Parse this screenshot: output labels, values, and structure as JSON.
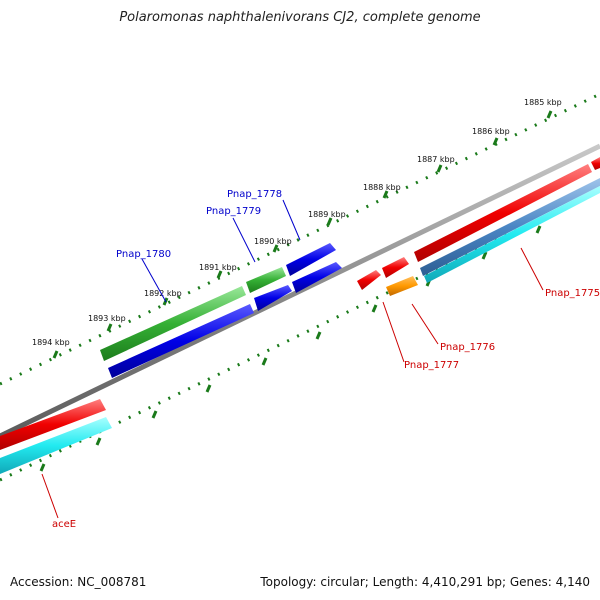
{
  "title": "Polaromonas naphthalenivorans CJ2, complete genome",
  "footer": {
    "accession": "Accession: NC_008781",
    "summary": "Topology: circular; Length: 4,410,291 bp; Genes: 4,140"
  },
  "scale_labels": [
    "1885 kbp",
    "1886 kbp",
    "1887 kbp",
    "1888 kbp",
    "1889 kbp",
    "1890 kbp",
    "1891 kbp",
    "1892 kbp",
    "1893 kbp",
    "1894 kbp"
  ],
  "gene_labels": [
    "Pnap_1778",
    "Pnap_1779",
    "Pnap_1780",
    "Pnap_1775",
    "Pnap_1776",
    "Pnap_1777",
    "aceE"
  ],
  "colors": {
    "blue_label": "#0000cc",
    "red_label": "#cc0000",
    "backbone": "#808080",
    "tick": "#1a7a1a"
  }
}
